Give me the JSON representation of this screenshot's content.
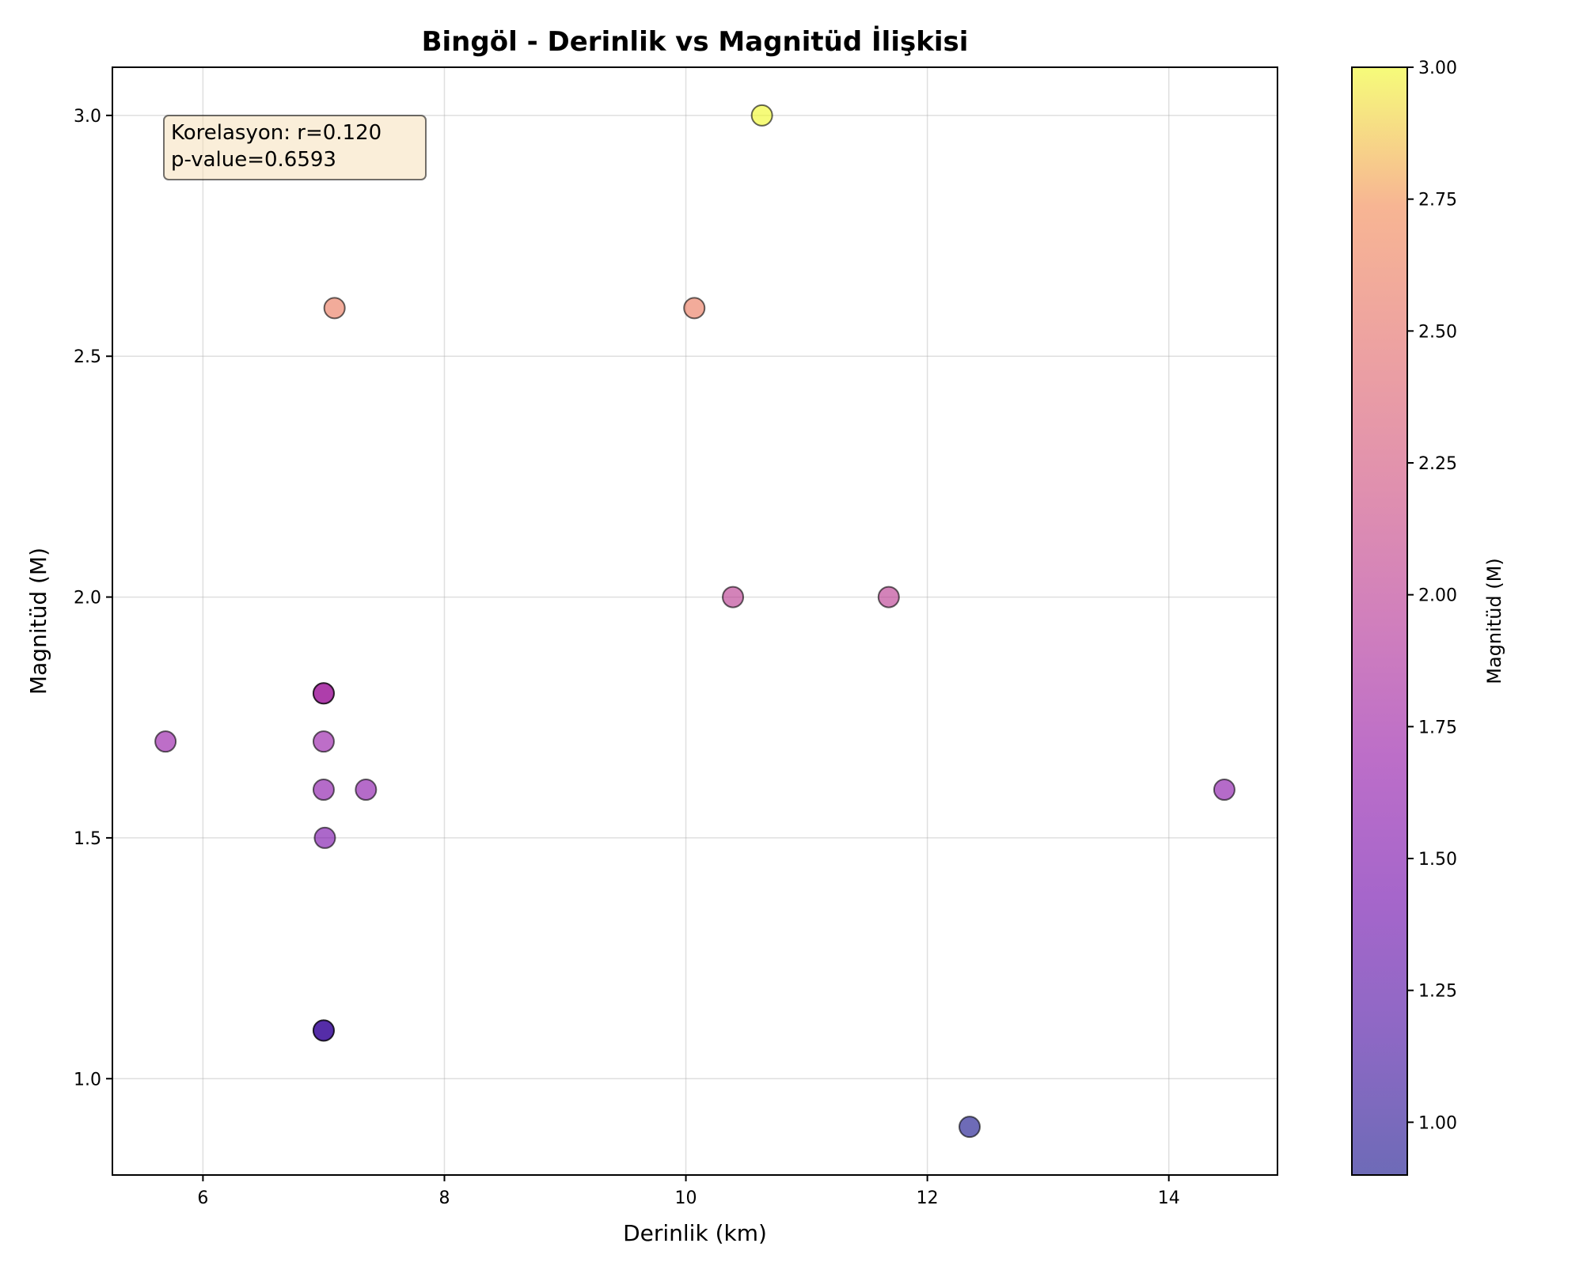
{
  "chart_data": {
    "type": "scatter",
    "title": "Bingöl - Derinlik vs Magnitüd İlişkisi",
    "xlabel": "Derinlik (km)",
    "ylabel": "Magnitüd (M)",
    "xlim": [
      5.25,
      14.9
    ],
    "ylim": [
      0.8,
      3.1
    ],
    "xticks": [
      6,
      8,
      10,
      12,
      14
    ],
    "yticks": [
      1.0,
      1.5,
      2.0,
      2.5,
      3.0
    ],
    "xtick_labels": [
      "6",
      "8",
      "10",
      "12",
      "14"
    ],
    "ytick_labels": [
      "1.0",
      "1.5",
      "2.0",
      "2.5",
      "3.0"
    ],
    "grid": true,
    "colormap": "plasma",
    "points": [
      {
        "x": 10.63,
        "y": 3.0
      },
      {
        "x": 7.09,
        "y": 2.6
      },
      {
        "x": 10.07,
        "y": 2.6
      },
      {
        "x": 10.39,
        "y": 2.0
      },
      {
        "x": 11.68,
        "y": 2.0
      },
      {
        "x": 7.0,
        "y": 1.8
      },
      {
        "x": 7.0,
        "y": 1.8
      },
      {
        "x": 5.69,
        "y": 1.7
      },
      {
        "x": 7.0,
        "y": 1.7
      },
      {
        "x": 7.0,
        "y": 1.6
      },
      {
        "x": 7.35,
        "y": 1.6
      },
      {
        "x": 14.46,
        "y": 1.6
      },
      {
        "x": 7.01,
        "y": 1.5
      },
      {
        "x": 7.0,
        "y": 1.1
      },
      {
        "x": 7.0,
        "y": 1.1
      },
      {
        "x": 12.35,
        "y": 0.9
      }
    ],
    "annotation": {
      "line1": "Korelasyon: r=0.120",
      "line2": "p-value=0.6593"
    },
    "colorbar": {
      "label": "Magnitüd (M)",
      "range": [
        0.9,
        3.0
      ],
      "ticks": [
        1.0,
        1.25,
        1.5,
        1.75,
        2.0,
        2.25,
        2.5,
        2.75,
        3.0
      ],
      "tick_labels": [
        "1.00",
        "1.25",
        "1.50",
        "1.75",
        "2.00",
        "2.25",
        "2.50",
        "2.75",
        "3.00"
      ]
    }
  }
}
